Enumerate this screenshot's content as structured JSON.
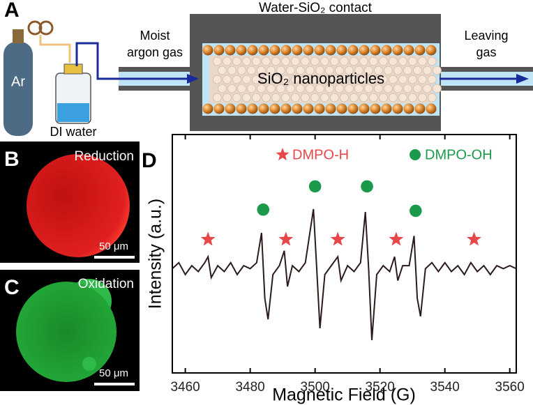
{
  "panel_a": {
    "label": "A",
    "cylinder_label": "Ar",
    "bottle_label": "DI water",
    "inlet_label": [
      "Moist",
      "argon gas"
    ],
    "outlet_label": [
      "Leaving",
      "gas"
    ],
    "top_label": "Water-SiO₂ contact",
    "core_label": "SiO₂ nanoparticles"
  },
  "panel_b": {
    "label": "B",
    "title": "Reduction",
    "scale_bar": "50 μm"
  },
  "panel_c": {
    "label": "C",
    "title": "Oxidation",
    "scale_bar": "50 μm"
  },
  "chart_data": {
    "type": "line",
    "panel_label": "D",
    "x_label": "Magnetic Field (G)",
    "y_label": "Intensity (a.u.)",
    "xlim": [
      3456,
      3562
    ],
    "ylim": [
      -1.75,
      2.25
    ],
    "xticks": [
      3460,
      3480,
      3500,
      3520,
      3540,
      3560
    ],
    "spectrum": {
      "color": "#2b1b1b",
      "x": [
        3456,
        3458,
        3460,
        3462,
        3464,
        3466,
        3467,
        3468,
        3470,
        3472,
        3474,
        3476,
        3478,
        3480,
        3482,
        3483.5,
        3484.5,
        3485.5,
        3487,
        3489,
        3490.5,
        3491.5,
        3493,
        3495,
        3497,
        3499.5,
        3500.5,
        3501.5,
        3503,
        3505,
        3507,
        3508,
        3510,
        3512,
        3514,
        3515.5,
        3516.5,
        3517.5,
        3519,
        3521,
        3523,
        3524.5,
        3525.5,
        3527,
        3529,
        3530.5,
        3531.5,
        3532.5,
        3534,
        3536,
        3538,
        3540,
        3542,
        3544,
        3546,
        3548,
        3550,
        3552,
        3554,
        3556,
        3558,
        3560,
        3562
      ],
      "values": [
        0,
        0.1,
        -0.1,
        0.05,
        -0.05,
        0.1,
        0.2,
        -0.15,
        0.05,
        -0.05,
        0.1,
        -0.1,
        0.05,
        0,
        0.1,
        0.6,
        -0.5,
        -0.85,
        -0.1,
        0.05,
        0.3,
        -0.3,
        0.05,
        -0.05,
        0.1,
        1.0,
        0,
        -1.0,
        -0.1,
        0.05,
        0.2,
        -0.2,
        0.05,
        -0.05,
        0.1,
        0.95,
        0,
        -1.2,
        -0.1,
        0.05,
        -0.05,
        0.2,
        -0.2,
        0.05,
        0.05,
        0.55,
        -0.5,
        -0.8,
        0,
        0.1,
        -0.05,
        0.1,
        -0.05,
        0.05,
        -0.1,
        0.1,
        -0.05,
        0.05,
        -0.1,
        0.05,
        0,
        0.05,
        0
      ]
    },
    "markers": [
      {
        "name": "DMPO-H",
        "color": "#e8474a",
        "shape": "star",
        "x": [
          3467,
          3491,
          3507,
          3525,
          3549
        ],
        "values": [
          0.49,
          0.49,
          0.49,
          0.49,
          0.49
        ]
      },
      {
        "name": "DMPO-OH",
        "color": "#1a9a4a",
        "shape": "circle",
        "x": [
          3484,
          3500,
          3516,
          3531
        ],
        "values": [
          0.99,
          1.38,
          1.38,
          0.97
        ]
      }
    ]
  }
}
